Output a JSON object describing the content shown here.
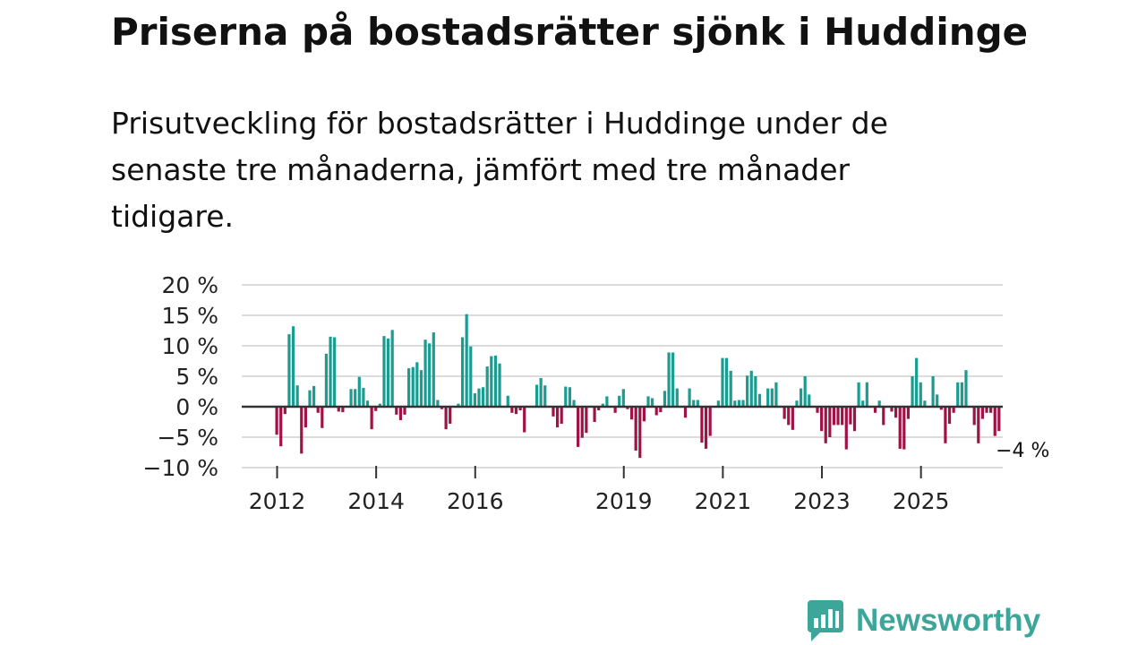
{
  "header": {
    "title": "Priserna på bostadsrätter sjönk i Huddinge",
    "subtitle": "Prisutveckling för bostadsrätter i Huddinge under de senaste tre månaderna, jämfört med tre månader tidigare."
  },
  "colors": {
    "positive": "#1a9c90",
    "negative": "#a01246",
    "grid": "#dcdcdc",
    "zero": "#333333",
    "logo": "#3da69a"
  },
  "logo": {
    "text": "Newsworthy",
    "icon": "bar-chart-speech-bubble-icon"
  },
  "chart_data": {
    "type": "bar",
    "title": "Priserna på bostadsrätter sjönk i Huddinge",
    "xlabel": "",
    "ylabel": "",
    "ylim": [
      -10,
      20
    ],
    "y_ticks": [
      {
        "value": 20,
        "label": "20 %"
      },
      {
        "value": 15,
        "label": "15 %"
      },
      {
        "value": 10,
        "label": "10 %"
      },
      {
        "value": 5,
        "label": "5 %"
      },
      {
        "value": 0,
        "label": "0 %"
      },
      {
        "value": -5,
        "label": "−5 %"
      },
      {
        "value": -10,
        "label": "−10 %"
      }
    ],
    "x_ticks": [
      {
        "value": 2012,
        "label": "2012"
      },
      {
        "value": 2014,
        "label": "2014"
      },
      {
        "value": 2016,
        "label": "2016"
      },
      {
        "value": 2019,
        "label": "2019"
      },
      {
        "value": 2021,
        "label": "2021"
      },
      {
        "value": 2023,
        "label": "2023"
      },
      {
        "value": 2025,
        "label": "2025"
      }
    ],
    "grid": true,
    "start_year": 2012,
    "months_per_bar": 1,
    "annotation": {
      "text": "−4 %",
      "value": -4
    },
    "values": [
      -4.6,
      -6.5,
      -1.2,
      11.9,
      13.2,
      3.5,
      -7.7,
      -3.4,
      2.7,
      3.4,
      -1.0,
      -3.5,
      8.7,
      11.5,
      11.4,
      -0.8,
      -0.9,
      0,
      2.9,
      2.9,
      4.9,
      3.1,
      1.0,
      -3.7,
      -0.7,
      0.5,
      11.6,
      11.2,
      12.6,
      -1.3,
      -2.2,
      -1.3,
      6.3,
      6.5,
      7.3,
      6.0,
      11.0,
      10.4,
      12.2,
      1.1,
      -0.4,
      -3.7,
      -2.8,
      0,
      0.5,
      11.4,
      15.2,
      9.9,
      2.2,
      3.0,
      3.2,
      6.6,
      8.3,
      8.4,
      7.1,
      0,
      1.8,
      -1.0,
      -1.2,
      -0.6,
      -4.2,
      0,
      0,
      3.6,
      4.7,
      3.5,
      0,
      -1.6,
      -3.4,
      -2.8,
      3.3,
      3.2,
      1.1,
      -6.6,
      -5.1,
      -4.3,
      0,
      -2.5,
      -0.6,
      0.5,
      1.7,
      0,
      -1.0,
      1.8,
      2.9,
      -0.4,
      -2.1,
      -7.2,
      -8.4,
      -2.4,
      1.7,
      1.4,
      -1.4,
      -0.9,
      2.6,
      8.9,
      8.9,
      3.0,
      0,
      -1.8,
      3.0,
      1.1,
      1.1,
      -5.9,
      -6.9,
      -4.8,
      0,
      1.0,
      8.0,
      8.0,
      5.9,
      1.0,
      1.1,
      1.1,
      5.1,
      5.9,
      5.0,
      2.1,
      0,
      3.0,
      3.0,
      4.0,
      0,
      -2.0,
      -3.0,
      -3.8,
      1.0,
      3.0,
      5.0,
      2.0,
      0,
      -1.0,
      -4.0,
      -6.0,
      -5.0,
      -3.0,
      -3.0,
      -3.0,
      -7.0,
      -2.9,
      -4.0,
      4.0,
      1.0,
      4.0,
      0,
      -1.0,
      1.0,
      -3.0,
      0,
      -0.8,
      -1.8,
      -6.9,
      -7.0,
      -2.0,
      5.0,
      8.0,
      4.0,
      1.0,
      0,
      5.0,
      2.0,
      -0.5,
      -6.0,
      -2.8,
      -1.0,
      4.0,
      4.0,
      6.0,
      0,
      -3.0,
      -6.0,
      -2.0,
      -1.0,
      -1.0,
      -4.8,
      -4.0
    ]
  }
}
